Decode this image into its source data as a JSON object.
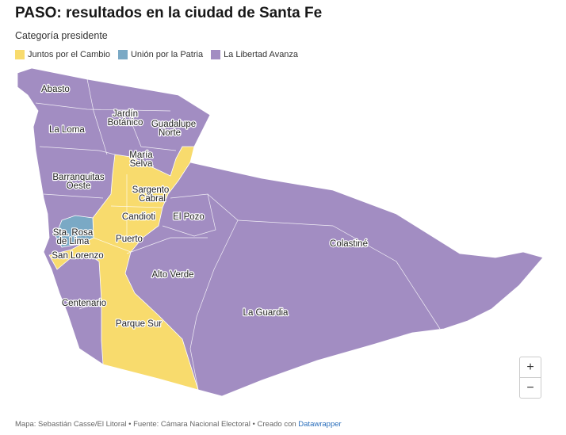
{
  "title": "PASO: resultados en la ciudad de Santa Fe",
  "subtitle": "Categoría presidente",
  "legend": [
    {
      "label": "Juntos por el Cambio",
      "color": "#f8db6d"
    },
    {
      "label": "Unión por la Patria",
      "color": "#7aa9c5"
    },
    {
      "label": "La Libertad Avanza",
      "color": "#a28dc2"
    }
  ],
  "neighborhoods": {
    "abasto": "Abasto",
    "jardin_botanico": [
      "Jardín",
      "Botánico"
    ],
    "guadalupe_norte": [
      "Guadalupe",
      "Norte"
    ],
    "la_loma": "La Loma",
    "maria_selva": [
      "María",
      "Selva"
    ],
    "barranquitas_oeste": [
      "Barranquitas",
      "Oeste"
    ],
    "sargento_cabral": [
      "Sargento",
      "Cabral"
    ],
    "candioti": "Candioti",
    "el_pozo": "El Pozo",
    "colastine": "Colastiné",
    "sta_rosa_de_lima": [
      "Sta. Rosa",
      "de Lima"
    ],
    "puerto": "Puerto",
    "san_lorenzo": "San Lorenzo",
    "alto_verde": "Alto Verde",
    "centenario": "Centenario",
    "la_guardia": "La Guardia",
    "parque_sur": "Parque Sur"
  },
  "zoom": {
    "in": "+",
    "out": "−"
  },
  "footer": {
    "text": "Mapa: Sebastián Casse/El Litoral • Fuente: Cámara Nacional Electoral • Creado con ",
    "link": "Datawrapper"
  }
}
